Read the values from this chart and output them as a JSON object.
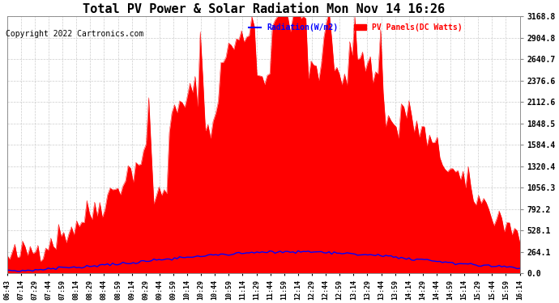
{
  "title": "Total PV Power & Solar Radiation Mon Nov 14 16:26",
  "copyright": "Copyright 2022 Cartronics.com",
  "legend_radiation": "Radiation(W/m2)",
  "legend_pv": "PV Panels(DC Watts)",
  "right_yticks": [
    0.0,
    264.1,
    528.1,
    792.2,
    1056.3,
    1320.4,
    1584.4,
    1848.5,
    2112.6,
    2376.6,
    2640.7,
    2904.8,
    3168.8
  ],
  "x_labels": [
    "06:43",
    "07:14",
    "07:29",
    "07:44",
    "07:59",
    "08:14",
    "08:29",
    "08:44",
    "08:59",
    "09:14",
    "09:29",
    "09:44",
    "09:59",
    "10:14",
    "10:29",
    "10:44",
    "10:59",
    "11:14",
    "11:29",
    "11:44",
    "11:59",
    "12:14",
    "12:29",
    "12:44",
    "12:59",
    "13:14",
    "13:29",
    "13:44",
    "13:59",
    "14:14",
    "14:29",
    "14:44",
    "14:59",
    "15:14",
    "15:29",
    "15:44",
    "15:59",
    "16:14"
  ],
  "background_color": "#ffffff",
  "fill_color": "#ff0000",
  "line_color": "#0000ff",
  "grid_color": "#cccccc",
  "title_color": "#000000",
  "copyright_color": "#000000",
  "radiation_color": "#0000ff",
  "pv_color": "#ff0000"
}
